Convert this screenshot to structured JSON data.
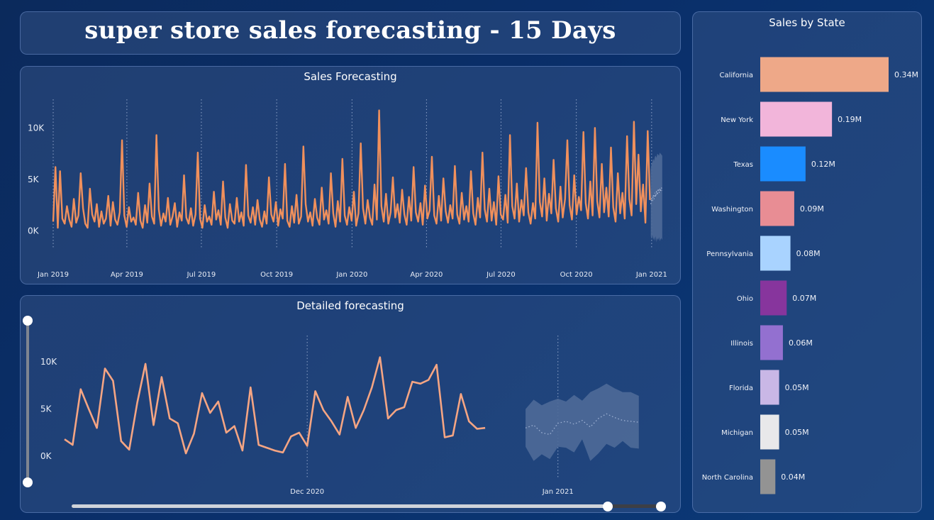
{
  "page_title": "super store sales forecasting - 15 Days",
  "chart_data": [
    {
      "id": "sales-forecasting",
      "type": "line",
      "title": "Sales Forecasting",
      "xlabel": "",
      "ylabel": "",
      "ylim": [
        -1000,
        12500
      ],
      "y_ticks": [
        "0K",
        "5K",
        "10K"
      ],
      "x_ticks": [
        "Jan 2019",
        "Apr 2019",
        "Jul 2019",
        "Oct 2019",
        "Jan 2020",
        "Apr 2020",
        "Jul 2020",
        "Oct 2020",
        "Jan 2021"
      ],
      "x_range": [
        "2019-01-01",
        "2021-01-15"
      ],
      "grid": "vertical dotted at x ticks",
      "series": [
        {
          "role": "actual",
          "color": "#f0905c",
          "x_start": "2019-01-01",
          "x_end": "2020-12-30",
          "values": [
            900,
            6200,
            300,
            5800,
            1200,
            700,
            2400,
            1100,
            400,
            3100,
            800,
            1500,
            5600,
            2200,
            700,
            300,
            4100,
            1600,
            900,
            2600,
            400,
            1900,
            700,
            1200,
            3400,
            500,
            2800,
            1100,
            600,
            1800,
            8800,
            1500,
            400,
            2300,
            900,
            1300,
            600,
            3700,
            1000,
            300,
            2500,
            800,
            4600,
            1400,
            700,
            9300,
            2100,
            500,
            1700,
            900,
            3200,
            600,
            1400,
            2700,
            400,
            1800,
            1000,
            5400,
            1300,
            700,
            2200,
            500,
            1600,
            7600,
            1200,
            300,
            2500,
            900,
            1400,
            600,
            3800,
            1100,
            2000,
            600,
            4800,
            1300,
            300,
            2600,
            1000,
            700,
            3200,
            900,
            1800,
            500,
            6400,
            1500,
            800,
            2300,
            600,
            3000,
            1100,
            400,
            1900,
            700,
            5200,
            1600,
            900,
            2800,
            500,
            2100,
            1200,
            6500,
            1000,
            400,
            2400,
            800,
            3500,
            700,
            1400,
            8200,
            2600,
            900,
            1800,
            500,
            3100,
            1300,
            600,
            4200,
            1100,
            2000,
            700,
            5600,
            1700,
            400,
            2900,
            900,
            7000,
            1500,
            600,
            2300,
            1000,
            3800,
            500,
            1700,
            8500,
            2200,
            700,
            3000,
            1300,
            600,
            4500,
            1100,
            11700,
            2400,
            900,
            3600,
            700,
            1800,
            5200,
            1300,
            2600,
            800,
            4000,
            1600,
            600,
            3300,
            1000,
            6200,
            1800,
            900,
            2700,
            600,
            4400,
            1200,
            2000,
            7200,
            1500,
            700,
            3400,
            1000,
            5100,
            1900,
            800,
            2500,
            1200,
            6300,
            1600,
            700,
            3700,
            1100,
            2400,
            900,
            5800,
            1700,
            600,
            3200,
            1300,
            7600,
            2100,
            900,
            4100,
            1000,
            2800,
            600,
            5300,
            1600,
            1100,
            3500,
            800,
            9300,
            2400,
            1200,
            4600,
            900,
            3000,
            1500,
            6100,
            1800,
            700,
            2700,
            1200,
            10500,
            2800,
            1400,
            5100,
            1000,
            3600,
            1700,
            6900,
            2200,
            900,
            4300,
            1300,
            3100,
            8800,
            2500,
            1100,
            5400,
            1600,
            3300,
            2000,
            9600,
            2700,
            1200,
            4800,
            1500,
            10000,
            2900,
            1300,
            6500,
            1800,
            4200,
            1400,
            8100,
            2300,
            900,
            5600,
            1700,
            3700,
            1200,
            9200,
            3100,
            1500,
            10600,
            2600,
            7400,
            1900,
            4500,
            800,
            9700,
            3000
          ],
          "note": "daily observed sales, Jan 2019 to end of Dec 2020, spiky 0K-12K"
        },
        {
          "role": "forecast",
          "color": "#a6b6d6",
          "x_start": "2020-12-31",
          "x_end": "2021-01-14",
          "values": [
            2600,
            3200,
            2900,
            3500,
            3100,
            3700,
            3300,
            3900,
            3500,
            4100,
            3700,
            4000,
            3800,
            4200,
            3900
          ],
          "band_upper": [
            6000,
            6500,
            6700,
            7000,
            6800,
            7200,
            7300,
            7100,
            7500,
            7400,
            7300,
            7600,
            7500,
            7400,
            7300
          ],
          "band_lower": [
            -500,
            -800,
            -400,
            -900,
            -600,
            -1000,
            -500,
            -1100,
            -700,
            -900,
            -600,
            -1000,
            -800,
            -700,
            -900
          ]
        }
      ]
    },
    {
      "id": "detailed-forecasting",
      "type": "line",
      "title": "Detailed forecasting",
      "xlabel": "",
      "ylabel": "",
      "ylim": [
        -1500,
        12500
      ],
      "y_ticks": [
        "0K",
        "5K",
        "10K"
      ],
      "x_ticks": [
        "Dec 2020",
        "Jan 2021"
      ],
      "x_range": [
        "2020-11-01",
        "2021-01-14"
      ],
      "grid": "vertical dotted at x ticks",
      "series": [
        {
          "role": "actual",
          "color": "#f5a583",
          "x_start": "2020-11-01",
          "values": [
            1800,
            1200,
            7100,
            5000,
            3000,
            9300,
            8000,
            1600,
            700,
            5700,
            9800,
            3300,
            8400,
            4000,
            3500,
            300,
            2400,
            6700,
            4600,
            5800,
            2500,
            3200,
            600,
            7300,
            1200,
            900,
            600,
            400,
            2100,
            2500,
            1100,
            6900,
            4900,
            3700,
            2300,
            6300,
            3000,
            4900,
            7300,
            10500,
            4000,
            4900,
            5200,
            7900,
            7700,
            8100,
            9700,
            2000,
            2200,
            6600,
            3700,
            2900,
            3000
          ],
          "note": "daily observed sales through end of Dec 2020"
        },
        {
          "role": "forecast",
          "color": "#9fb2d4",
          "x_start": "2020-12-28",
          "values": [
            3000,
            3300,
            2500,
            2300,
            3500,
            3700,
            3400,
            3800,
            3100,
            4000,
            4500,
            4100,
            3800,
            3700,
            3600
          ],
          "band_upper": [
            5000,
            6000,
            5400,
            5800,
            6100,
            5800,
            6500,
            5900,
            6800,
            7200,
            7700,
            7200,
            6800,
            6800,
            6400
          ],
          "band_lower": [
            1000,
            -500,
            200,
            -300,
            1000,
            900,
            400,
            1800,
            -500,
            300,
            1300,
            900,
            1600,
            900,
            800
          ]
        }
      ]
    },
    {
      "id": "sales-by-state",
      "type": "bar",
      "orientation": "horizontal",
      "title": "Sales by State",
      "xlabel": "",
      "ylabel": "",
      "xlim": [
        0,
        0.34
      ],
      "categories": [
        "California",
        "New York",
        "Texas",
        "Washington",
        "Pennsylvania",
        "Ohio",
        "Illinois",
        "Florida",
        "Michigan",
        "North Carolina"
      ],
      "values": [
        0.34,
        0.19,
        0.12,
        0.09,
        0.08,
        0.07,
        0.06,
        0.05,
        0.05,
        0.04
      ],
      "value_labels": [
        "0.34M",
        "0.19M",
        "0.12M",
        "0.09M",
        "0.08M",
        "0.07M",
        "0.06M",
        "0.05M",
        "0.05M",
        "0.04M"
      ],
      "colors": [
        "#eea888",
        "#f2b5da",
        "#1a8cff",
        "#e88d94",
        "#a9d3ff",
        "#87359d",
        "#9370d0",
        "#c9b7e6",
        "#e8e8ea",
        "#939393"
      ]
    }
  ],
  "controls": {
    "vertical_slider": {
      "range": [
        0,
        1
      ]
    },
    "horizontal_slider": {
      "range": [
        0.0,
        0.92
      ]
    }
  },
  "colors": {
    "background": "#0b2f6a",
    "panel": "#3a588c",
    "actual_line": "#f0905c",
    "forecast_band": "#4e6a98"
  }
}
